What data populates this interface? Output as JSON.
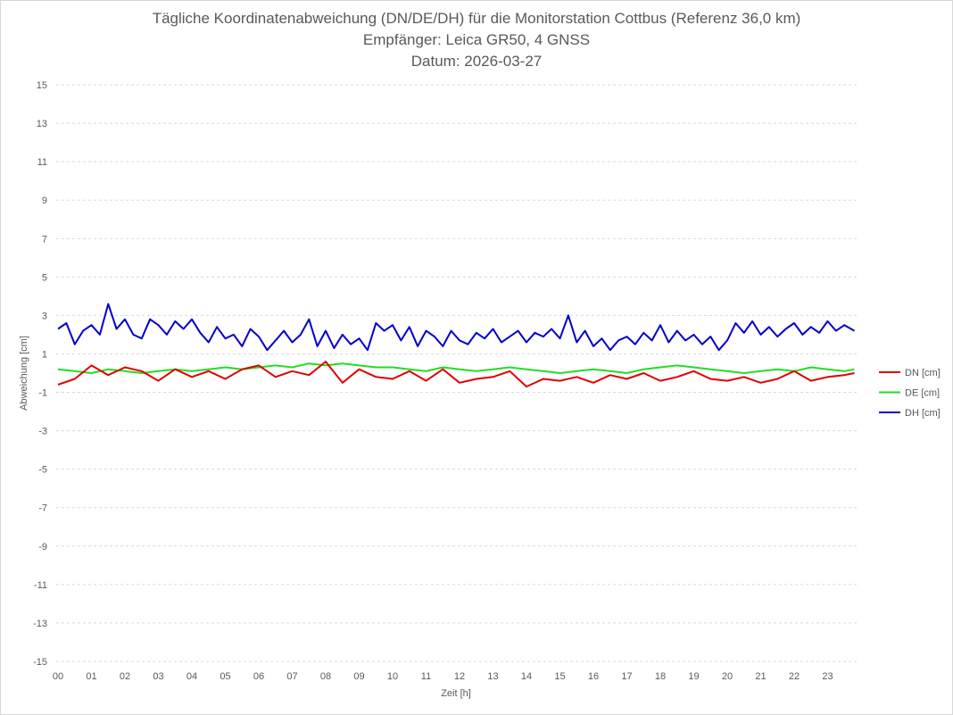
{
  "chart_data": {
    "type": "line",
    "title": "Tägliche Koordinatenabweichung (DN/DE/DH) für die Monitorstation Cottbus (Referenz 36,0 km)",
    "subtitle1": "Empfänger: Leica GR50, 4 GNSS",
    "subtitle2": "Datum: 2026-03-27",
    "xlabel": "Zeit [h]",
    "ylabel": "Abweichung [cm]",
    "ylim": [
      -15,
      15
    ],
    "xlim": [
      0,
      24
    ],
    "y_ticks": [
      "15",
      "13",
      "11",
      "9",
      "7",
      "5",
      "3",
      "1",
      "-1",
      "-3",
      "-5",
      "-7",
      "-9",
      "-11",
      "-13",
      "-15"
    ],
    "x_ticks": [
      "00",
      "01",
      "02",
      "03",
      "04",
      "05",
      "06",
      "07",
      "08",
      "09",
      "10",
      "11",
      "12",
      "13",
      "14",
      "15",
      "16",
      "17",
      "18",
      "19",
      "20",
      "21",
      "22",
      "23"
    ],
    "grid": true,
    "legend_position": "right",
    "series": [
      {
        "name": "DN [cm]",
        "color": "#e00000",
        "x": [
          0,
          0.5,
          1,
          1.5,
          2,
          2.5,
          3,
          3.5,
          4,
          4.5,
          5,
          5.5,
          6,
          6.5,
          7,
          7.5,
          8,
          8.5,
          9,
          9.5,
          10,
          10.5,
          11,
          11.5,
          12,
          12.5,
          13,
          13.5,
          14,
          14.5,
          15,
          15.5,
          16,
          16.5,
          17,
          17.5,
          18,
          18.5,
          19,
          19.5,
          20,
          20.5,
          21,
          21.5,
          22,
          22.5,
          23,
          23.5,
          23.8
        ],
        "values": [
          -0.6,
          -0.3,
          0.4,
          -0.1,
          0.3,
          0.1,
          -0.4,
          0.2,
          -0.2,
          0.1,
          -0.3,
          0.2,
          0.4,
          -0.2,
          0.1,
          -0.1,
          0.6,
          -0.5,
          0.2,
          -0.2,
          -0.3,
          0.1,
          -0.4,
          0.2,
          -0.5,
          -0.3,
          -0.2,
          0.1,
          -0.7,
          -0.3,
          -0.4,
          -0.2,
          -0.5,
          -0.1,
          -0.3,
          0,
          -0.4,
          -0.2,
          0.1,
          -0.3,
          -0.4,
          -0.2,
          -0.5,
          -0.3,
          0.1,
          -0.4,
          -0.2,
          -0.1,
          0
        ]
      },
      {
        "name": "DE [cm]",
        "color": "#22dd22",
        "x": [
          0,
          0.5,
          1,
          1.5,
          2,
          2.5,
          3,
          3.5,
          4,
          4.5,
          5,
          5.5,
          6,
          6.5,
          7,
          7.5,
          8,
          8.5,
          9,
          9.5,
          10,
          10.5,
          11,
          11.5,
          12,
          12.5,
          13,
          13.5,
          14,
          14.5,
          15,
          15.5,
          16,
          16.5,
          17,
          17.5,
          18,
          18.5,
          19,
          19.5,
          20,
          20.5,
          21,
          21.5,
          22,
          22.5,
          23,
          23.5,
          23.8
        ],
        "values": [
          0.2,
          0.1,
          0,
          0.2,
          0.1,
          0,
          0.1,
          0.2,
          0.1,
          0.2,
          0.3,
          0.2,
          0.3,
          0.4,
          0.3,
          0.5,
          0.4,
          0.5,
          0.4,
          0.3,
          0.3,
          0.2,
          0.1,
          0.3,
          0.2,
          0.1,
          0.2,
          0.3,
          0.2,
          0.1,
          0,
          0.1,
          0.2,
          0.1,
          0,
          0.2,
          0.3,
          0.4,
          0.3,
          0.2,
          0.1,
          0,
          0.1,
          0.2,
          0.1,
          0.3,
          0.2,
          0.1,
          0.2
        ]
      },
      {
        "name": "DH [cm]",
        "color": "#0000cc",
        "x": [
          0,
          0.25,
          0.5,
          0.75,
          1,
          1.25,
          1.5,
          1.75,
          2,
          2.25,
          2.5,
          2.75,
          3,
          3.25,
          3.5,
          3.75,
          4,
          4.25,
          4.5,
          4.75,
          5,
          5.25,
          5.5,
          5.75,
          6,
          6.25,
          6.5,
          6.75,
          7,
          7.25,
          7.5,
          7.75,
          8,
          8.25,
          8.5,
          8.75,
          9,
          9.25,
          9.5,
          9.75,
          10,
          10.25,
          10.5,
          10.75,
          11,
          11.25,
          11.5,
          11.75,
          12,
          12.25,
          12.5,
          12.75,
          13,
          13.25,
          13.5,
          13.75,
          14,
          14.25,
          14.5,
          14.75,
          15,
          15.25,
          15.5,
          15.75,
          16,
          16.25,
          16.5,
          16.75,
          17,
          17.25,
          17.5,
          17.75,
          18,
          18.25,
          18.5,
          18.75,
          19,
          19.25,
          19.5,
          19.75,
          20,
          20.25,
          20.5,
          20.75,
          21,
          21.25,
          21.5,
          21.75,
          22,
          22.25,
          22.5,
          22.75,
          23,
          23.25,
          23.5,
          23.8
        ],
        "values": [
          2.3,
          2.6,
          1.5,
          2.2,
          2.5,
          2.0,
          3.6,
          2.3,
          2.8,
          2.0,
          1.8,
          2.8,
          2.5,
          2.0,
          2.7,
          2.3,
          2.8,
          2.1,
          1.6,
          2.4,
          1.8,
          2.0,
          1.4,
          2.3,
          1.9,
          1.2,
          1.7,
          2.2,
          1.6,
          2.0,
          2.8,
          1.4,
          2.2,
          1.3,
          2.0,
          1.5,
          1.8,
          1.2,
          2.6,
          2.2,
          2.5,
          1.7,
          2.4,
          1.4,
          2.2,
          1.9,
          1.4,
          2.2,
          1.7,
          1.5,
          2.1,
          1.8,
          2.3,
          1.6,
          1.9,
          2.2,
          1.6,
          2.1,
          1.9,
          2.3,
          1.8,
          3.0,
          1.6,
          2.2,
          1.4,
          1.8,
          1.2,
          1.7,
          1.9,
          1.5,
          2.1,
          1.7,
          2.5,
          1.6,
          2.2,
          1.7,
          2.0,
          1.5,
          1.9,
          1.2,
          1.7,
          2.6,
          2.1,
          2.7,
          2.0,
          2.4,
          1.9,
          2.3,
          2.6,
          2.0,
          2.4,
          2.1,
          2.7,
          2.2,
          2.5,
          2.2
        ]
      }
    ]
  }
}
